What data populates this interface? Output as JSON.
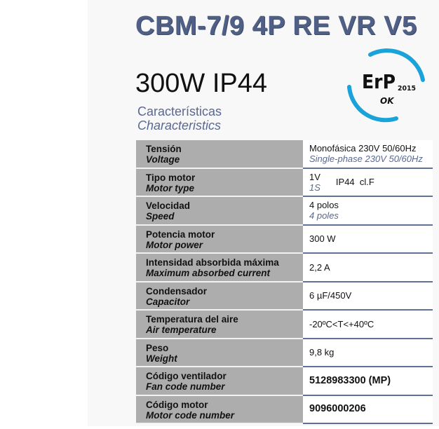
{
  "title": "CBM-7/9 4P RE VR V5",
  "subtitle": "300W IP44",
  "section": {
    "es": "Características",
    "en": "Characteristics"
  },
  "logo": {
    "text": "ErP",
    "year": "2015",
    "status": "OK",
    "color": "#1aa3d9"
  },
  "rows": [
    {
      "es": "Tensión",
      "en": "Voltage",
      "value": "Monofásica 230V 50/60Hz",
      "value_en": "Single-phase 230V 50/60Hz"
    },
    {
      "es": "Tipo motor",
      "en": "Motor type",
      "value": "1V",
      "value_en": "1S",
      "extra": "IP44  cl.F"
    },
    {
      "es": "Velocidad",
      "en": "Speed",
      "value": "4 polos",
      "value_en": "4 poles"
    },
    {
      "es": "Potencia motor",
      "en": "Motor power",
      "value": "300 W"
    },
    {
      "es": "Intensidad absorbida máxima",
      "en": "Maximum absorbed current",
      "value": "2,2 A"
    },
    {
      "es": "Condensador",
      "en": "Capacitor",
      "value": "6 µF/450V"
    },
    {
      "es": "Temperatura del aire",
      "en": "Air temperature",
      "value": "-20ºC<T<+40ºC"
    },
    {
      "es": "Peso",
      "en": "Weight",
      "value": "9,8 kg"
    },
    {
      "es": "Código ventilador",
      "en": "Fan code number",
      "value": "5128983300 (MP)"
    },
    {
      "es": "Código motor",
      "en": "Motor code number",
      "value": "9096000206"
    }
  ]
}
